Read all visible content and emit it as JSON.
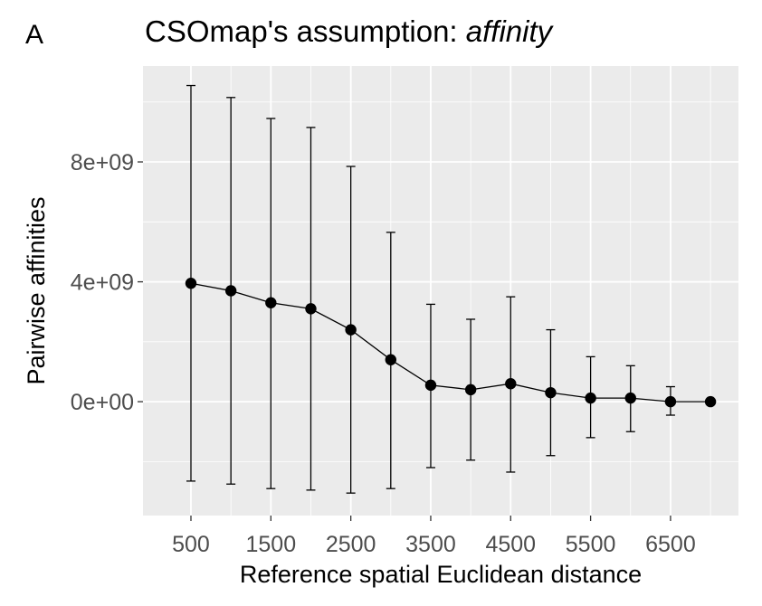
{
  "panel_label": "A",
  "chart_data": {
    "type": "line",
    "title_prefix": "CSOmap's assumption: ",
    "title_emphasis": "affinity",
    "xlabel": "Reference spatial Euclidean distance",
    "ylabel": "Pairwise affinities",
    "x_ticks": [
      500,
      1500,
      2500,
      3500,
      4500,
      5500,
      6500
    ],
    "x_tick_labels": [
      "500",
      "1500",
      "2500",
      "3500",
      "4500",
      "5500",
      "6500"
    ],
    "y_ticks": [
      0,
      4000000000,
      8000000000
    ],
    "y_tick_labels": [
      "0e+00",
      "4e+09",
      "8e+09"
    ],
    "xlim": [
      -100,
      7350
    ],
    "ylim": [
      -3800000000,
      11200000000
    ],
    "grid": true,
    "background": "#ebebeb",
    "grid_color": "#ffffff",
    "series": [
      {
        "x": [
          500,
          1000,
          1500,
          2000,
          2500,
          3000,
          3500,
          4000,
          4500,
          5000,
          5500,
          6000,
          6500,
          7000
        ],
        "y": [
          3950000000,
          3700000000,
          3300000000,
          3100000000,
          2400000000,
          1400000000,
          550000000,
          400000000,
          600000000,
          300000000,
          120000000,
          120000000,
          0,
          0
        ],
        "err_low": [
          -2650000000,
          -2750000000,
          -2900000000,
          -2950000000,
          -3050000000,
          -2900000000,
          -2200000000,
          -1950000000,
          -2350000000,
          -1800000000,
          -1200000000,
          -1000000000,
          -450000000,
          0
        ],
        "err_high": [
          10550000000,
          10150000000,
          9450000000,
          9150000000,
          7850000000,
          5650000000,
          3250000000,
          2750000000,
          3500000000,
          2400000000,
          1500000000,
          1200000000,
          500000000,
          0
        ],
        "color": "#000000"
      }
    ]
  }
}
